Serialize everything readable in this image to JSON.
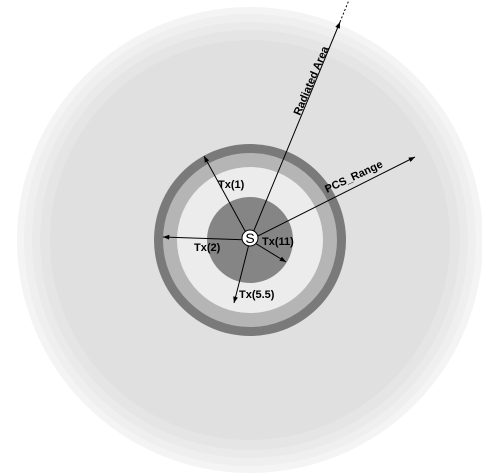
{
  "diagram": {
    "source_label": "S",
    "labels": {
      "tx1": "Tx(1)",
      "tx2": "Tx(2)",
      "tx11": "Tx(11)",
      "tx55": "Tx(5.5)",
      "pcs_range": "PCS_Range",
      "radiated_area": "Radiated Area"
    },
    "colors": {
      "radiated_outer": "#f2f2f2",
      "radiated_inner": "#e0e0e0",
      "ring_dark": "#7a7a7a",
      "ring_mid": "#b5b5b5",
      "ring_light": "#ececec",
      "core": "#858585",
      "source_fill": "#ffffff",
      "lines": "#000000"
    }
  }
}
